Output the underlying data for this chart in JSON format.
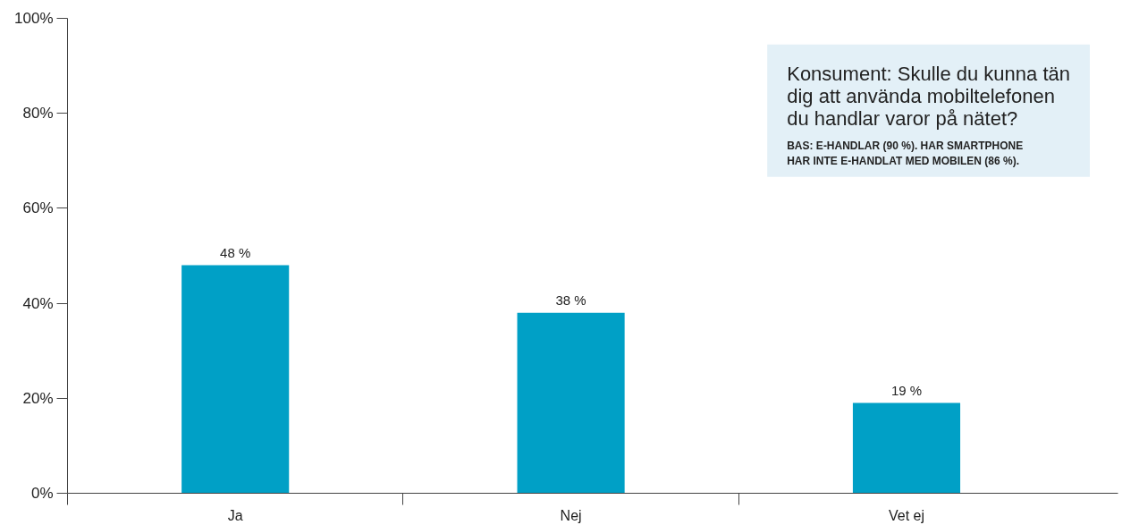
{
  "chart_data": {
    "type": "bar",
    "title": "Konsument: Skulle du kunna tän\ndig att använda mobiltelefonen\ndu handlar varor på nätet?",
    "subtitle": "BAS: E-HANDLAR (90 %). HAR SMARTPHONE\nHAR INTE E-HANDLAT MED MOBILEN (86 %).",
    "categories": [
      "Ja",
      "Nej",
      "Vet ej"
    ],
    "values": [
      48,
      38,
      19
    ],
    "color": "#00a0c6",
    "value_labels": [
      "48 %",
      "38 %",
      "19 %"
    ],
    "ylim": [
      0,
      100
    ],
    "yticks": [
      {
        "value": 0,
        "label": "0%"
      },
      {
        "value": 20,
        "label": "20%"
      },
      {
        "value": 40,
        "label": "40%"
      },
      {
        "value": 60,
        "label": "60%"
      },
      {
        "value": 80,
        "label": "80%"
      },
      {
        "value": 100,
        "label": "100%"
      }
    ],
    "grid": false
  }
}
